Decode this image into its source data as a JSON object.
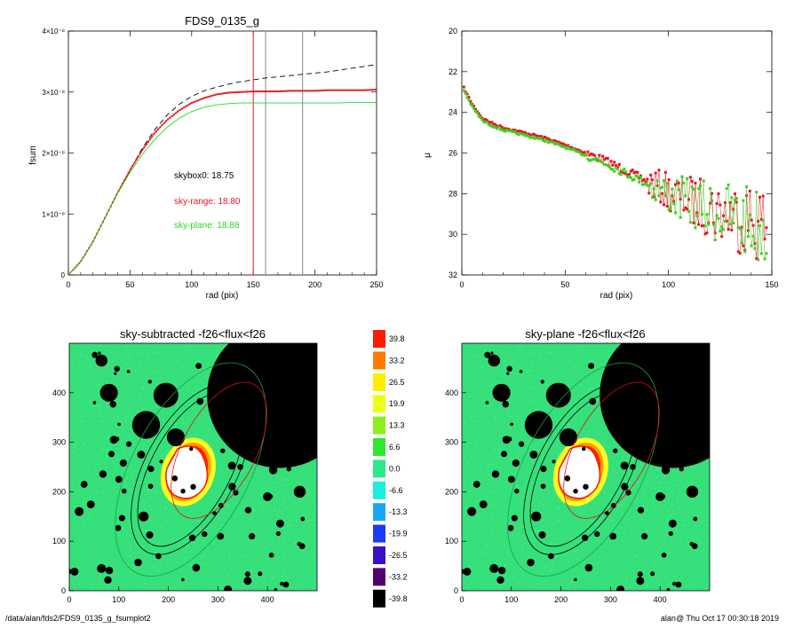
{
  "footer": {
    "left": "/data/alan/fds2/FDS9_0135_g_fsumplot2",
    "right": "alan@  Thu Oct 17 00:30:18 2019"
  },
  "chart_data": [
    {
      "type": "line",
      "title": "FDS9_0135_g",
      "xlabel": "rad (pix)",
      "ylabel": "fsum",
      "xlim": [
        0,
        250
      ],
      "ylim": [
        0,
        4e-08
      ],
      "xticks": [
        "0",
        "50",
        "100",
        "150",
        "200",
        "250"
      ],
      "yticks": [
        "0",
        "1×10⁻⁸",
        "2×10⁻⁸",
        "3×10⁻⁸",
        "4×10⁻⁸"
      ],
      "x": [
        0,
        10,
        20,
        30,
        40,
        50,
        60,
        70,
        80,
        90,
        100,
        110,
        120,
        130,
        140,
        150,
        160,
        170,
        180,
        190,
        200,
        210,
        220,
        230,
        240,
        250
      ],
      "series": [
        {
          "style": "dashed",
          "color": "#000000",
          "values": [
            0,
            2.2e-09,
            5.5e-09,
            9.5e-09,
            1.35e-08,
            1.72e-08,
            2.08e-08,
            2.38e-08,
            2.62e-08,
            2.8e-08,
            2.93e-08,
            3.02e-08,
            3.08e-08,
            3.13e-08,
            3.17e-08,
            3.2e-08,
            3.23e-08,
            3.25e-08,
            3.27e-08,
            3.29e-08,
            3.31e-08,
            3.33e-08,
            3.36e-08,
            3.39e-08,
            3.42e-08,
            3.45e-08
          ]
        },
        {
          "style": "points",
          "color": "#e8161f",
          "values": [
            0,
            2.2e-09,
            5.5e-09,
            9.5e-09,
            1.35e-08,
            1.72e-08,
            2.05e-08,
            2.33e-08,
            2.54e-08,
            2.7e-08,
            2.82e-08,
            2.9e-08,
            2.96e-08,
            2.99e-08,
            3e-08,
            3.01e-08,
            3.01e-08,
            3.01e-08,
            3.02e-08,
            3.02e-08,
            3.02e-08,
            3.03e-08,
            3.03e-08,
            3.03e-08,
            3.03e-08,
            3.04e-08
          ]
        },
        {
          "style": "solid",
          "color": "#22dd22",
          "values": [
            0,
            2.2e-09,
            5.5e-09,
            9.5e-09,
            1.34e-08,
            1.68e-08,
            1.98e-08,
            2.22e-08,
            2.42e-08,
            2.57e-08,
            2.68e-08,
            2.75e-08,
            2.79e-08,
            2.81e-08,
            2.82e-08,
            2.82e-08,
            2.82e-08,
            2.82e-08,
            2.82e-08,
            2.82e-08,
            2.82e-08,
            2.82e-08,
            2.82e-08,
            2.83e-08,
            2.83e-08,
            2.83e-08
          ]
        }
      ],
      "vlines": [
        {
          "x": 150,
          "color": "#e8161f"
        },
        {
          "x": 160,
          "color": "#888888"
        },
        {
          "x": 190,
          "color": "#888888"
        }
      ],
      "annotations": [
        {
          "text": "skybox0: 18.75",
          "color": "#000000"
        },
        {
          "text": "sky-range: 18.80",
          "color": "#e8161f"
        },
        {
          "text": "sky-plane: 18.88",
          "color": "#22dd22"
        }
      ]
    },
    {
      "type": "scatter",
      "xlabel": "rad (pix)",
      "ylabel": "μ",
      "xlim": [
        0,
        150
      ],
      "ylim": [
        32,
        20
      ],
      "xticks": [
        "0",
        "50",
        "100",
        "150"
      ],
      "yticks": [
        "20",
        "22",
        "24",
        "26",
        "28",
        "30",
        "32"
      ],
      "profile_anchors": {
        "x": [
          1,
          5,
          10,
          15,
          20,
          30,
          40,
          50,
          60,
          70,
          80,
          90,
          100,
          110,
          120,
          130,
          140,
          148
        ],
        "y": [
          22.8,
          23.6,
          24.3,
          24.55,
          24.75,
          25.0,
          25.25,
          25.6,
          26.0,
          26.4,
          26.9,
          27.4,
          27.9,
          28.3,
          28.7,
          29.0,
          29.3,
          29.6
        ]
      },
      "series": [
        {
          "color": "#e8161f",
          "marker": "square"
        },
        {
          "color": "#44cc22",
          "marker": "square"
        }
      ]
    },
    {
      "type": "heatmap",
      "title": "sky-subtracted -f26<flux<f26",
      "xlim": [
        0,
        500
      ],
      "ylim": [
        0,
        500
      ],
      "xticks": [
        "0",
        "100",
        "200",
        "300",
        "400"
      ],
      "yticks": [
        "0",
        "100",
        "200",
        "300",
        "400"
      ]
    },
    {
      "type": "heatmap",
      "title": "sky-plane -f26<flux<f26",
      "xlim": [
        0,
        500
      ],
      "ylim": [
        0,
        500
      ],
      "xticks": [
        "0",
        "100",
        "200",
        "300",
        "400"
      ],
      "yticks": [
        "0",
        "100",
        "200",
        "300",
        "400"
      ]
    }
  ],
  "colorbar": {
    "labels": [
      "39.8",
      "33.2",
      "26.5",
      "19.9",
      "13.3",
      "6.6",
      "0.0",
      "-6.6",
      "-13.3",
      "-19.9",
      "-26.5",
      "-33.2",
      "-39.8"
    ],
    "colors": [
      "#ff1a00",
      "#ff7a00",
      "#ffee00",
      "#eaff1a",
      "#8cf01e",
      "#2ee82e",
      "#2be88c",
      "#19eee0",
      "#1aa6f4",
      "#1a3cf4",
      "#3a10c8",
      "#520070",
      "#000000"
    ]
  }
}
